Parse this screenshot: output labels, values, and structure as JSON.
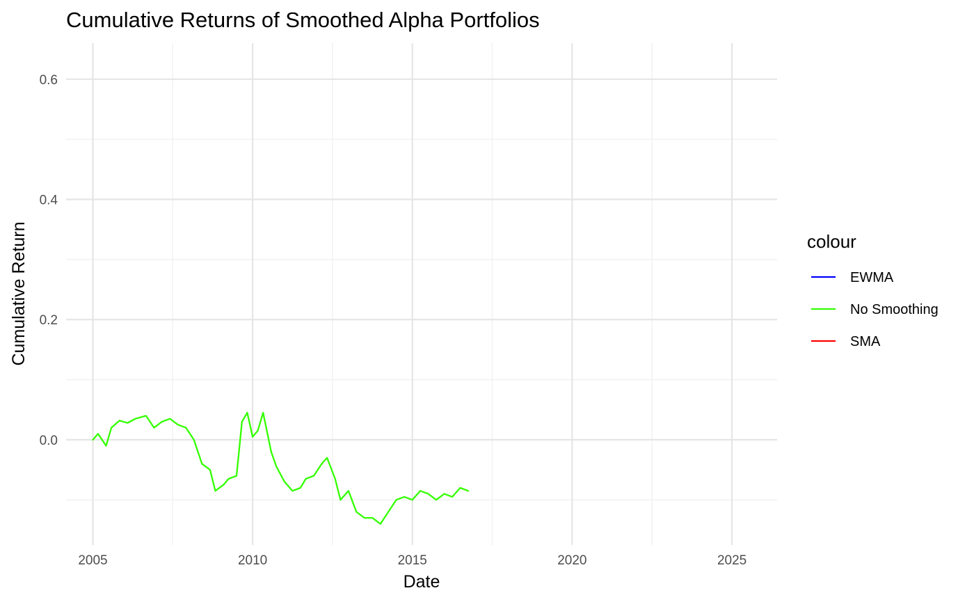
{
  "chart_data": {
    "type": "line",
    "title": "Cumulative Returns of Smoothed Alpha Portfolios",
    "xlabel": "Date",
    "ylabel": "Cumulative Return",
    "x_axis_type": "date",
    "xlim": [
      "2004-03-01",
      "2026-06-01"
    ],
    "ylim": [
      -0.175,
      0.66
    ],
    "x_ticks": [
      {
        "date": "2005-01-01",
        "label": "2005"
      },
      {
        "date": "2010-01-01",
        "label": "2010"
      },
      {
        "date": "2015-01-01",
        "label": "2015"
      },
      {
        "date": "2020-01-01",
        "label": "2020"
      },
      {
        "date": "2025-01-01",
        "label": "2025"
      }
    ],
    "x_minor_ticks": [
      "2007-07-01",
      "2012-07-01",
      "2017-07-01",
      "2022-07-01"
    ],
    "y_ticks": [
      {
        "value": 0.0,
        "label": "0.0"
      },
      {
        "value": 0.2,
        "label": "0.2"
      },
      {
        "value": 0.4,
        "label": "0.4"
      },
      {
        "value": 0.6,
        "label": "0.6"
      }
    ],
    "y_minor_ticks": [
      -0.1,
      0.1,
      0.3,
      0.5
    ],
    "grid": true,
    "legend": {
      "title": "colour",
      "position": "right",
      "entries": [
        {
          "label": "EWMA",
          "color": "#0000ff"
        },
        {
          "label": "No Smoothing",
          "color": "#33ff00"
        },
        {
          "label": "SMA",
          "color": "#ff0000"
        }
      ]
    },
    "series": [
      {
        "name": "No Smoothing",
        "color": "#33ff00",
        "points": [
          [
            "2005-01-01",
            0.0
          ],
          [
            "2005-03-01",
            0.01
          ],
          [
            "2005-06-01",
            -0.01
          ],
          [
            "2005-08-01",
            0.02
          ],
          [
            "2005-11-01",
            0.032
          ],
          [
            "2006-02-01",
            0.028
          ],
          [
            "2006-05-01",
            0.035
          ],
          [
            "2006-09-01",
            0.04
          ],
          [
            "2006-12-01",
            0.02
          ],
          [
            "2007-03-01",
            0.03
          ],
          [
            "2007-06-01",
            0.035
          ],
          [
            "2007-09-01",
            0.025
          ],
          [
            "2007-12-01",
            0.02
          ],
          [
            "2008-03-01",
            0.0
          ],
          [
            "2008-06-01",
            -0.04
          ],
          [
            "2008-09-01",
            -0.05
          ],
          [
            "2008-11-01",
            -0.085
          ],
          [
            "2009-02-01",
            -0.075
          ],
          [
            "2009-04-01",
            -0.065
          ],
          [
            "2009-07-01",
            -0.06
          ],
          [
            "2009-09-01",
            0.03
          ],
          [
            "2009-11-01",
            0.045
          ],
          [
            "2010-01-01",
            0.005
          ],
          [
            "2010-03-01",
            0.015
          ],
          [
            "2010-05-01",
            0.045
          ],
          [
            "2010-08-01",
            -0.02
          ],
          [
            "2010-10-01",
            -0.045
          ],
          [
            "2011-01-01",
            -0.07
          ],
          [
            "2011-04-01",
            -0.085
          ],
          [
            "2011-07-01",
            -0.08
          ],
          [
            "2011-09-01",
            -0.065
          ],
          [
            "2011-12-01",
            -0.06
          ],
          [
            "2012-03-01",
            -0.04
          ],
          [
            "2012-05-01",
            -0.03
          ],
          [
            "2012-08-01",
            -0.065
          ],
          [
            "2012-10-01",
            -0.1
          ],
          [
            "2013-01-01",
            -0.085
          ],
          [
            "2013-04-01",
            -0.12
          ],
          [
            "2013-07-01",
            -0.13
          ],
          [
            "2013-10-01",
            -0.13
          ],
          [
            "2014-01-01",
            -0.14
          ],
          [
            "2014-04-01",
            -0.12
          ],
          [
            "2014-07-01",
            -0.1
          ],
          [
            "2014-10-01",
            -0.095
          ],
          [
            "2015-01-01",
            -0.1
          ],
          [
            "2015-04-01",
            -0.085
          ],
          [
            "2015-07-01",
            -0.09
          ],
          [
            "2015-10-01",
            -0.1
          ],
          [
            "2016-01-01",
            -0.09
          ],
          [
            "2016-04-01",
            -0.095
          ],
          [
            "2016-07-01",
            -0.08
          ],
          [
            "2016-10-01",
            -0.085
          ]
        ]
      }
    ]
  }
}
